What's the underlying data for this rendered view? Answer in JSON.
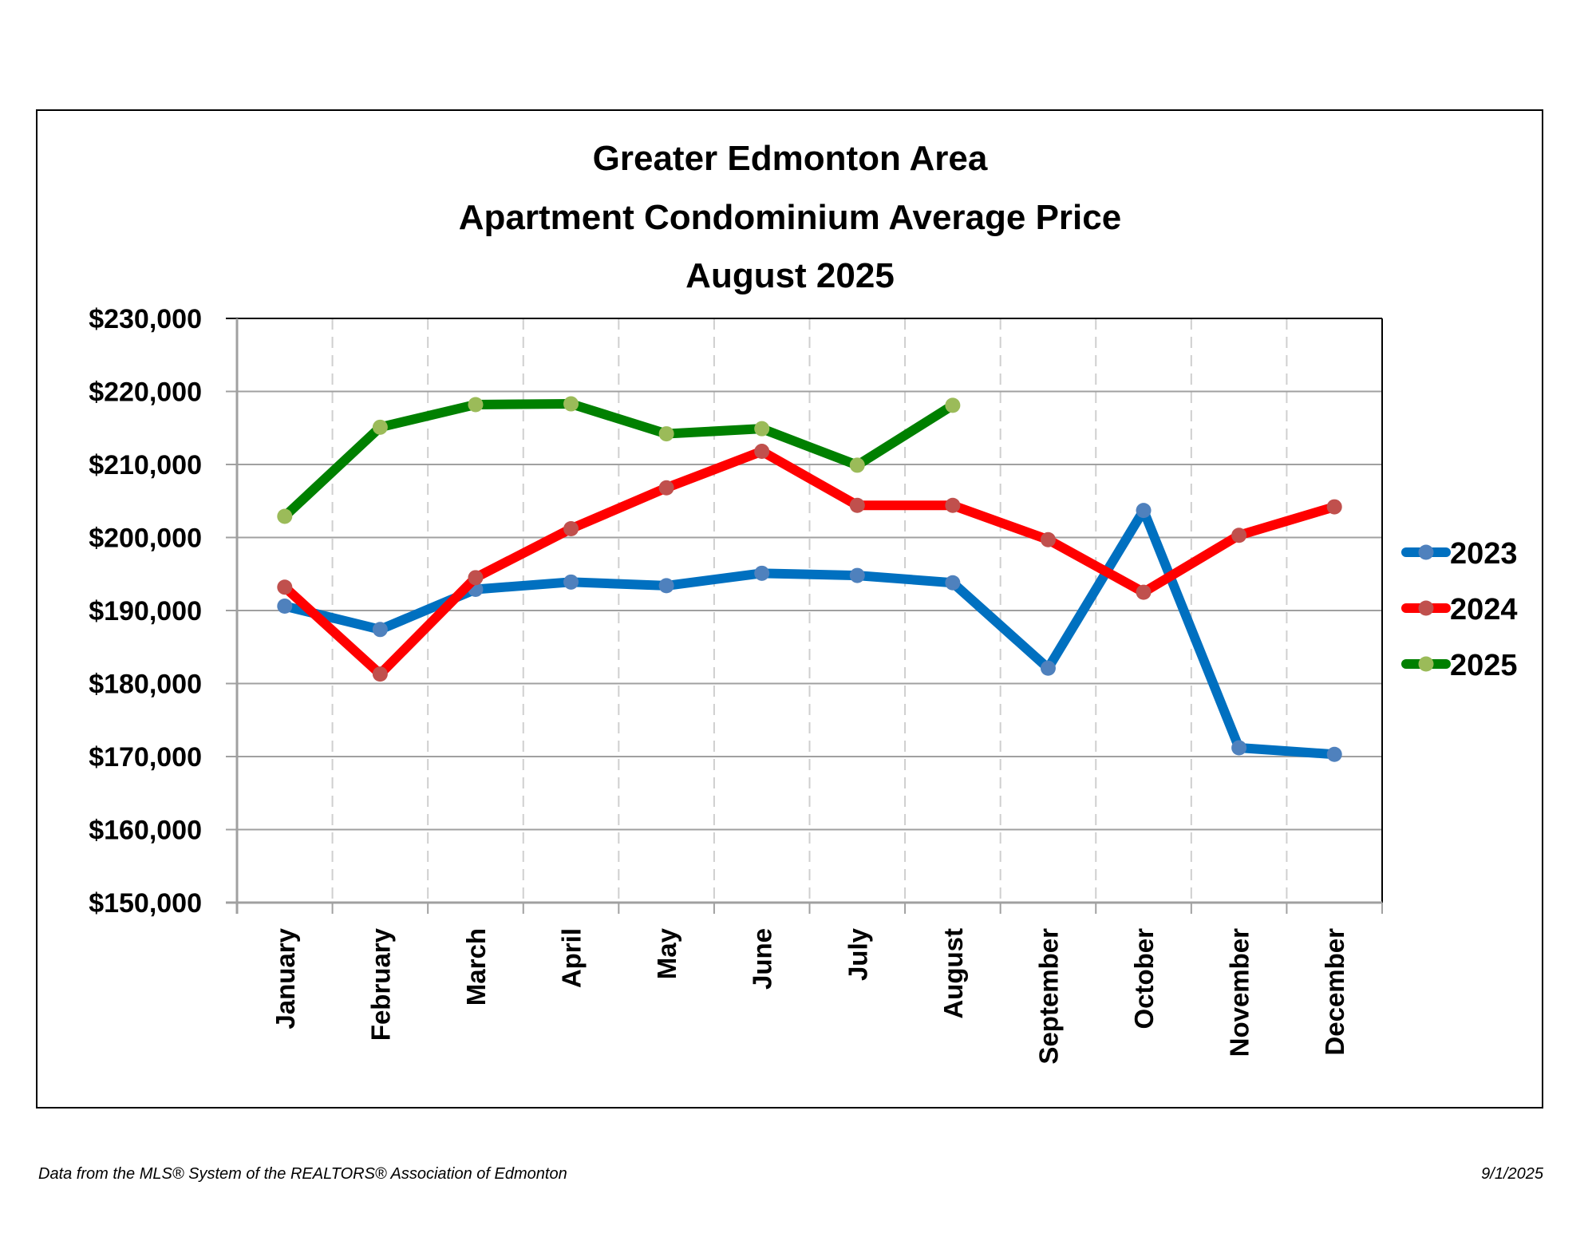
{
  "chart_data": {
    "type": "line",
    "title": [
      "Greater Edmonton Area",
      "Apartment Condominium Average Price",
      "August 2025"
    ],
    "xlabel": "",
    "ylabel": "",
    "categories": [
      "January",
      "February",
      "March",
      "April",
      "May",
      "June",
      "July",
      "August",
      "September",
      "October",
      "November",
      "December"
    ],
    "ylim": [
      150000,
      230000
    ],
    "yticks": [
      150000,
      160000,
      170000,
      180000,
      190000,
      200000,
      210000,
      220000,
      230000
    ],
    "ytick_labels": [
      "$150,000",
      "$160,000",
      "$170,000",
      "$180,000",
      "$190,000",
      "$200,000",
      "$210,000",
      "$220,000",
      "$230,000"
    ],
    "grid": {
      "horizontal": true,
      "vertical": "dashed"
    },
    "legend_position": "right",
    "series": [
      {
        "name": "2023",
        "line_color": "#0070C0",
        "marker_color": "#4F81BD",
        "values": [
          190600,
          187400,
          192900,
          193900,
          193400,
          195100,
          194800,
          193800,
          182100,
          203700,
          171200,
          170300
        ]
      },
      {
        "name": "2024",
        "line_color": "#FF0000",
        "marker_color": "#C0504D",
        "values": [
          193200,
          181300,
          194500,
          201200,
          206800,
          211800,
          204400,
          204400,
          199700,
          192500,
          200300,
          204200
        ]
      },
      {
        "name": "2025",
        "line_color": "#008000",
        "marker_color": "#9BBB59",
        "values": [
          202900,
          215100,
          218200,
          218300,
          214200,
          214900,
          209900,
          218100,
          null,
          null,
          null,
          null
        ]
      }
    ]
  },
  "footer": {
    "source": "Data from the MLS® System of the REALTORS® Association of Edmonton",
    "date": "9/1/2025"
  }
}
